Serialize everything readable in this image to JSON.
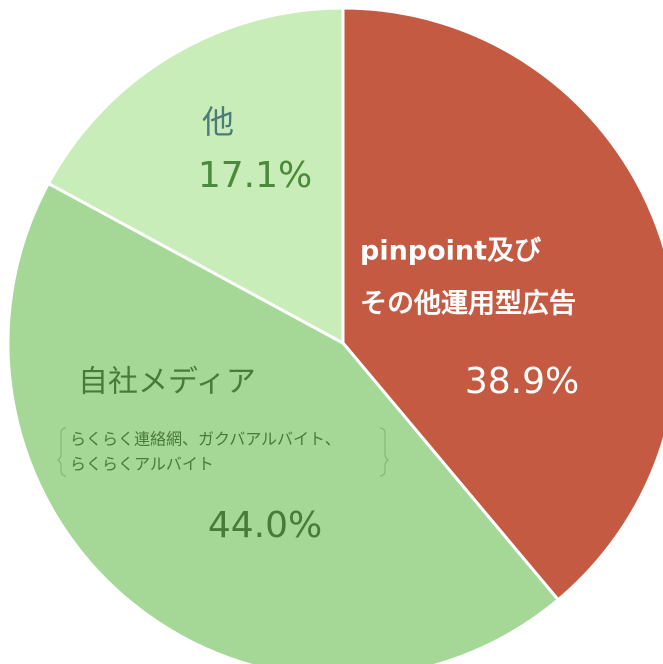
{
  "chart_data": {
    "type": "pie",
    "categories": [
      [
        "pinpoint及び",
        "その他運用型広告"
      ],
      [
        "自社メディア"
      ],
      [
        "他"
      ]
    ],
    "values": [
      38.9,
      44.0,
      17.1
    ],
    "value_labels": [
      "38.9%",
      "44.0%",
      "17.1%"
    ],
    "colors": [
      "#c55a43",
      "#a5d796",
      "#c9edb8"
    ],
    "annotation": [
      "らくらく連絡網、ガクバアルバイト、",
      "らくらくアルバイト"
    ]
  }
}
